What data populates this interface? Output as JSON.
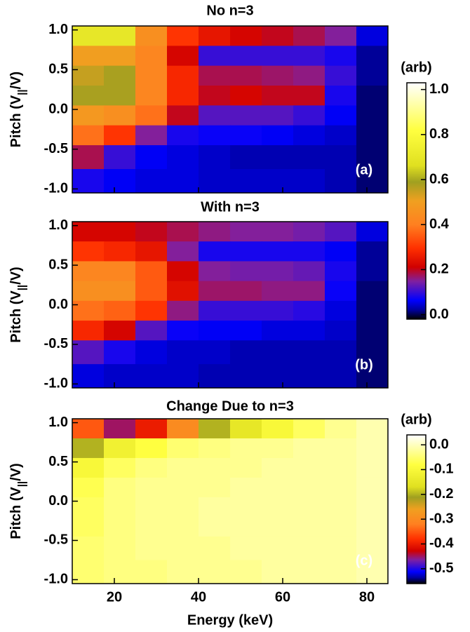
{
  "chart_data": [
    {
      "type": "heatmap",
      "title": "No n=3",
      "panel_label": "(a)",
      "ylabel_parts": [
        "Pitch (V",
        "||",
        "/V)"
      ],
      "xlim": [
        10,
        85
      ],
      "ylim": [
        -1.05,
        1.05
      ],
      "yticks": [
        {
          "value": 1,
          "label": "1.0"
        },
        0.5,
        {
          "value": 0,
          "label": "0.0"
        },
        -0.5,
        {
          "value": -1,
          "label": "-1.0"
        }
      ],
      "xbins": [
        10,
        17.5,
        25,
        32.5,
        40,
        47.5,
        55,
        62.5,
        70,
        77.5,
        85
      ],
      "ybins": [
        1.05,
        0.8,
        0.55,
        0.3,
        0.05,
        -0.2,
        -0.45,
        -0.75,
        -1.05
      ],
      "values": [
        [
          0.7,
          0.7,
          0.45,
          0.3,
          0.25,
          0.22,
          0.2,
          0.18,
          0.15,
          0.05
        ],
        [
          0.5,
          0.5,
          0.42,
          0.22,
          0.1,
          0.1,
          0.1,
          0.1,
          0.08,
          0.02
        ],
        [
          0.55,
          0.58,
          0.42,
          0.28,
          0.18,
          0.18,
          0.17,
          0.16,
          0.1,
          0.02
        ],
        [
          0.58,
          0.58,
          0.42,
          0.28,
          0.2,
          0.22,
          0.2,
          0.2,
          0.08,
          0.01
        ],
        [
          0.48,
          0.45,
          0.38,
          0.2,
          0.12,
          0.12,
          0.12,
          0.1,
          0.06,
          0.01
        ],
        [
          0.38,
          0.3,
          0.15,
          0.08,
          0.07,
          0.07,
          0.06,
          0.05,
          0.04,
          0.01
        ],
        [
          0.18,
          0.1,
          0.06,
          0.05,
          0.04,
          0.03,
          0.03,
          0.03,
          0.03,
          0.01
        ],
        [
          0.08,
          0.06,
          0.05,
          0.05,
          0.04,
          0.04,
          0.04,
          0.04,
          0.03,
          0.01
        ]
      ],
      "clim": [
        -0.02,
        1.03
      ],
      "colormap": [
        [
          0,
          "#000000"
        ],
        [
          0.04,
          "#0000a0"
        ],
        [
          0.08,
          "#0000ff"
        ],
        [
          0.16,
          "#8020a0"
        ],
        [
          0.22,
          "#d00000"
        ],
        [
          0.3,
          "#ff3000"
        ],
        [
          0.4,
          "#ff8020"
        ],
        [
          0.5,
          "#f0a020"
        ],
        [
          0.58,
          "#a0a020"
        ],
        [
          0.65,
          "#e0e020"
        ],
        [
          0.8,
          "#ffff40"
        ],
        [
          1,
          "#ffffff"
        ]
      ],
      "colorbar": {
        "label": "(arb)",
        "ticks": [
          {
            "value": 1,
            "label": "1.0"
          },
          0.8,
          0.6,
          0.4,
          0.2,
          {
            "value": 0,
            "label": "0.0"
          }
        ]
      }
    },
    {
      "type": "heatmap",
      "title": "With n=3",
      "panel_label": "(b)",
      "ylabel_parts": [
        "Pitch (V",
        "||",
        "/V)"
      ],
      "xlim": [
        10,
        85
      ],
      "ylim": [
        -1.05,
        1.05
      ],
      "yticks": [
        {
          "value": 1,
          "label": "1.0"
        },
        0.5,
        {
          "value": 0,
          "label": "0.0"
        },
        -0.5,
        {
          "value": -1,
          "label": "-1.0"
        }
      ],
      "xbins": [
        10,
        17.5,
        25,
        32.5,
        40,
        47.5,
        55,
        62.5,
        70,
        77.5,
        85
      ],
      "ybins": [
        1.05,
        0.8,
        0.55,
        0.3,
        0.05,
        -0.2,
        -0.45,
        -0.75,
        -1.05
      ],
      "values": [
        [
          0.22,
          0.22,
          0.2,
          0.18,
          0.16,
          0.15,
          0.15,
          0.14,
          0.12,
          0.05
        ],
        [
          0.3,
          0.28,
          0.25,
          0.15,
          0.08,
          0.08,
          0.08,
          0.08,
          0.06,
          0.02
        ],
        [
          0.42,
          0.42,
          0.35,
          0.22,
          0.15,
          0.14,
          0.14,
          0.13,
          0.08,
          0.02
        ],
        [
          0.45,
          0.45,
          0.35,
          0.24,
          0.17,
          0.17,
          0.16,
          0.16,
          0.07,
          0.01
        ],
        [
          0.38,
          0.36,
          0.3,
          0.16,
          0.1,
          0.1,
          0.1,
          0.09,
          0.05,
          0.01
        ],
        [
          0.28,
          0.22,
          0.12,
          0.07,
          0.06,
          0.06,
          0.05,
          0.05,
          0.04,
          0.01
        ],
        [
          0.12,
          0.08,
          0.05,
          0.04,
          0.04,
          0.03,
          0.03,
          0.03,
          0.03,
          0.01
        ],
        [
          0.05,
          0.04,
          0.04,
          0.04,
          0.03,
          0.03,
          0.03,
          0.03,
          0.03,
          0.01
        ]
      ],
      "clim": [
        -0.02,
        1.03
      ],
      "colormap": [
        [
          0,
          "#000000"
        ],
        [
          0.04,
          "#0000a0"
        ],
        [
          0.08,
          "#0000ff"
        ],
        [
          0.16,
          "#8020a0"
        ],
        [
          0.22,
          "#d00000"
        ],
        [
          0.3,
          "#ff3000"
        ],
        [
          0.4,
          "#ff8020"
        ],
        [
          0.5,
          "#f0a020"
        ],
        [
          0.58,
          "#a0a020"
        ],
        [
          0.65,
          "#e0e020"
        ],
        [
          0.8,
          "#ffff40"
        ],
        [
          1,
          "#ffffff"
        ]
      ]
    },
    {
      "type": "heatmap",
      "title": "Change Due to n=3",
      "panel_label": "(c)",
      "ylabel_parts": [
        "Pitch (V",
        "||",
        "/V)"
      ],
      "xlabel": "Energy (keV)",
      "xlim": [
        10,
        85
      ],
      "ylim": [
        -1.05,
        1.05
      ],
      "xticks": [
        20,
        40,
        60,
        80
      ],
      "yticks": [
        {
          "value": 1,
          "label": "1.0"
        },
        0.5,
        {
          "value": 0,
          "label": "0.0"
        },
        -0.5,
        {
          "value": -1,
          "label": "-1.0"
        }
      ],
      "xbins": [
        10,
        17.5,
        25,
        32.5,
        40,
        47.5,
        55,
        62.5,
        70,
        77.5,
        85
      ],
      "ybins": [
        1.05,
        0.8,
        0.55,
        0.3,
        0.05,
        -0.2,
        -0.45,
        -0.75,
        -1.05
      ],
      "values": [
        [
          -0.35,
          -0.45,
          -0.4,
          -0.3,
          -0.2,
          -0.15,
          -0.1,
          -0.06,
          -0.03,
          -0.01
        ],
        [
          -0.2,
          -0.12,
          -0.08,
          -0.05,
          -0.04,
          -0.03,
          -0.03,
          -0.02,
          -0.02,
          -0.01
        ],
        [
          -0.1,
          -0.06,
          -0.04,
          -0.03,
          -0.03,
          -0.03,
          -0.02,
          -0.02,
          -0.02,
          -0.01
        ],
        [
          -0.07,
          -0.04,
          -0.03,
          -0.03,
          -0.03,
          -0.02,
          -0.02,
          -0.02,
          -0.02,
          -0.01
        ],
        [
          -0.06,
          -0.04,
          -0.03,
          -0.03,
          -0.02,
          -0.02,
          -0.02,
          -0.02,
          -0.02,
          -0.01
        ],
        [
          -0.06,
          -0.04,
          -0.03,
          -0.03,
          -0.02,
          -0.02,
          -0.02,
          -0.02,
          -0.02,
          -0.01
        ],
        [
          -0.05,
          -0.04,
          -0.03,
          -0.03,
          -0.03,
          -0.02,
          -0.02,
          -0.02,
          -0.02,
          -0.01
        ],
        [
          -0.05,
          -0.04,
          -0.04,
          -0.03,
          -0.03,
          -0.03,
          -0.02,
          -0.02,
          -0.02,
          -0.01
        ]
      ],
      "clim": [
        -0.56,
        0.04
      ],
      "colormap": [
        [
          0,
          "#000000"
        ],
        [
          0.04,
          "#0000a0"
        ],
        [
          0.08,
          "#0000ff"
        ],
        [
          0.16,
          "#8020a0"
        ],
        [
          0.22,
          "#d00000"
        ],
        [
          0.3,
          "#ff3000"
        ],
        [
          0.4,
          "#ff8020"
        ],
        [
          0.5,
          "#f0a020"
        ],
        [
          0.58,
          "#a0a020"
        ],
        [
          0.65,
          "#e0e020"
        ],
        [
          0.8,
          "#ffff40"
        ],
        [
          1,
          "#ffffff"
        ]
      ],
      "colorbar": {
        "label": "(arb)",
        "ticks": [
          {
            "value": 0,
            "label": "0.0"
          },
          -0.1,
          -0.2,
          -0.3,
          -0.4,
          -0.5
        ]
      }
    }
  ]
}
